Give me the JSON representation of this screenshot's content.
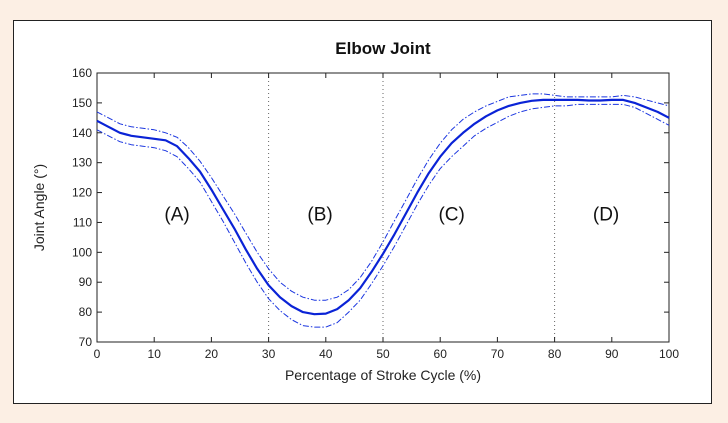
{
  "chart_data": {
    "type": "line",
    "title": "Elbow Joint",
    "xlabel": "Percentage of Stroke Cycle (%)",
    "ylabel": "Joint Angle (°)",
    "xlim": [
      0,
      100
    ],
    "ylim": [
      70,
      160
    ],
    "xticks": [
      0,
      10,
      20,
      30,
      40,
      50,
      60,
      70,
      80,
      90,
      100
    ],
    "yticks": [
      70,
      80,
      90,
      100,
      110,
      120,
      130,
      140,
      150,
      160
    ],
    "grid": false,
    "phase_dividers": [
      30,
      50,
      80
    ],
    "phase_labels": [
      {
        "text": "(A)",
        "x": 14,
        "y": 113
      },
      {
        "text": "(B)",
        "x": 39,
        "y": 113
      },
      {
        "text": "(C)",
        "x": 62,
        "y": 113
      },
      {
        "text": "(D)",
        "x": 89,
        "y": 113
      }
    ],
    "x": [
      0,
      2,
      4,
      6,
      8,
      10,
      12,
      14,
      16,
      18,
      20,
      22,
      24,
      26,
      28,
      30,
      32,
      34,
      36,
      38,
      40,
      42,
      44,
      46,
      48,
      50,
      52,
      54,
      56,
      58,
      60,
      62,
      64,
      66,
      68,
      70,
      72,
      74,
      76,
      78,
      80,
      82,
      84,
      86,
      88,
      90,
      92,
      94,
      96,
      98,
      100
    ],
    "series": [
      {
        "role": "mean",
        "values": [
          144,
          142,
          140,
          139,
          138.5,
          138,
          137.5,
          135.5,
          131.5,
          127,
          121,
          114.5,
          108,
          101,
          94.5,
          89,
          85,
          82,
          80,
          79.3,
          79.5,
          81,
          84,
          88,
          93.5,
          99.5,
          106,
          113,
          120,
          126.5,
          132,
          136.5,
          140,
          143,
          145.5,
          147.5,
          149,
          150,
          150.7,
          151,
          151,
          151,
          151,
          150.8,
          150.8,
          151,
          151,
          150,
          148.5,
          147,
          145
        ]
      },
      {
        "role": "upper",
        "values": [
          147,
          145,
          143,
          142,
          141.5,
          141,
          140,
          138.5,
          135,
          130.5,
          125,
          119,
          113,
          106.5,
          100,
          94.5,
          90,
          87,
          85,
          84,
          84,
          85,
          87.5,
          91.5,
          97,
          103.5,
          110.5,
          117.5,
          124.5,
          131,
          136.5,
          141,
          144.5,
          147,
          149,
          150.5,
          152,
          152.5,
          153,
          153,
          152.5,
          152,
          152,
          152,
          152,
          152,
          152.5,
          152,
          151,
          150,
          149
        ]
      },
      {
        "role": "lower",
        "values": [
          141,
          139,
          137,
          136,
          135.5,
          135,
          134,
          132,
          128,
          123.5,
          117,
          110.5,
          103.5,
          96.5,
          90,
          84.5,
          80.5,
          77.5,
          75.5,
          75,
          75,
          76.5,
          80,
          84,
          89.5,
          95.5,
          102,
          109,
          116,
          122.5,
          128,
          132,
          135.5,
          139,
          141.5,
          143.5,
          145.5,
          147,
          148,
          148.5,
          149,
          149,
          149.5,
          149.5,
          149.5,
          149.5,
          149.5,
          148.5,
          146.5,
          144.5,
          142.5
        ]
      }
    ],
    "colors": {
      "line": "#0a23d6",
      "band": "#1b36e0",
      "divider": "#666666",
      "axis": "#222222"
    }
  }
}
